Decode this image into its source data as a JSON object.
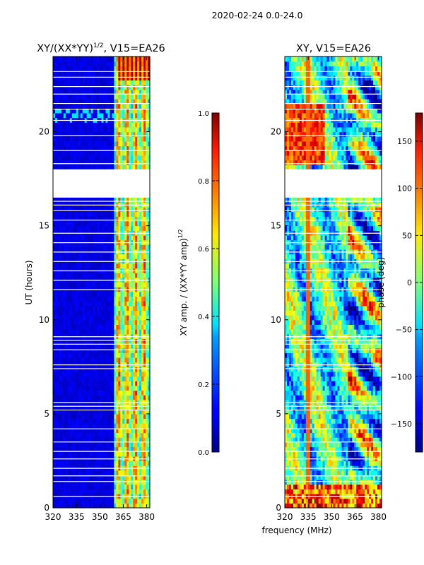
{
  "figure": {
    "suptitle": "2020-02-24 0.0-24.0",
    "shared_xlabel": "frequency (MHz)"
  },
  "chart_data": [
    {
      "type": "heatmap",
      "title_main": "XY/(XX*YY)",
      "title_sup": "1/2",
      "title_tail": ", V15=EA26",
      "xlabel": "",
      "ylabel": "UT (hours)",
      "xlim": [
        320,
        382
      ],
      "ylim": [
        0,
        24
      ],
      "xticks": [
        320,
        335,
        350,
        365,
        380
      ],
      "yticks": [
        0,
        5,
        10,
        15,
        20
      ],
      "quantity": "normalized XY amplitude",
      "colormap": "jet",
      "gap_hours": [
        16.5,
        18.0
      ],
      "active_band_mhz": [
        359,
        382
      ],
      "colorbar": {
        "label_main": "XY amp. / (XX*YY amp)",
        "label_sup": "1/2",
        "range": [
          0.0,
          1.0
        ],
        "ticks": [
          "0.0",
          "0.2",
          "0.4",
          "0.6",
          "0.8",
          "1.0"
        ]
      }
    },
    {
      "type": "heatmap",
      "title_main": "XY, V15=EA26",
      "xlabel": "frequency (MHz)",
      "ylabel": "",
      "xlim": [
        320,
        382
      ],
      "ylim": [
        0,
        24
      ],
      "xticks": [
        320,
        335,
        350,
        365,
        380
      ],
      "yticks": [
        0,
        5,
        10,
        15,
        20
      ],
      "quantity": "XY phase",
      "colormap": "jet",
      "gap_hours": [
        16.5,
        18.0
      ],
      "colorbar": {
        "label_main": "phase (deg)",
        "range": [
          -180,
          180
        ],
        "ticks": [
          "150",
          "100",
          "50",
          "0",
          "−50",
          "−100",
          "−150"
        ]
      }
    }
  ]
}
